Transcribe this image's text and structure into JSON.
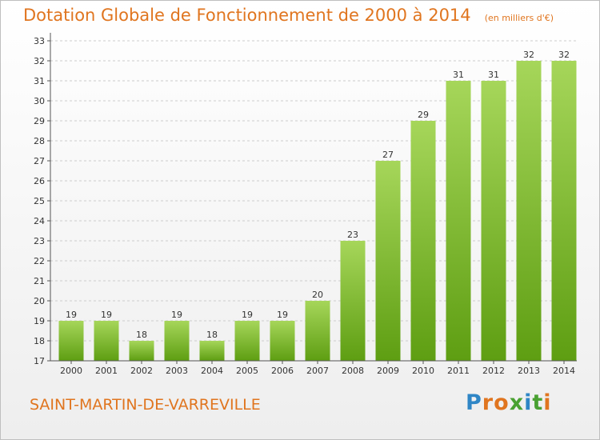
{
  "title": "Dotation Globale de Fonctionnement de 2000 à 2014",
  "subtitle": "(en milliers d'€)",
  "commune": "SAINT-MARTIN-DE-VARREVILLE",
  "logo": {
    "text": "Proxiti",
    "letter_colors": [
      "#2f86c6",
      "#e0751f",
      "#e0751f",
      "#4aa132",
      "#2f86c6",
      "#4aa132",
      "#e0751f"
    ]
  },
  "colors": {
    "title": "#e0751f",
    "bar_top": "#a6d65a",
    "bar_bottom": "#5e9e12",
    "grid": "#cccccc",
    "axis": "#555555"
  },
  "chart_data": {
    "type": "bar",
    "categories": [
      "2000",
      "2001",
      "2002",
      "2003",
      "2004",
      "2005",
      "2006",
      "2007",
      "2008",
      "2009",
      "2010",
      "2011",
      "2012",
      "2013",
      "2014"
    ],
    "values": [
      19,
      19,
      18,
      19,
      18,
      19,
      19,
      20,
      23,
      27,
      29,
      31,
      31,
      32,
      32
    ],
    "title": "Dotation Globale de Fonctionnement de 2000 à 2014",
    "subtitle": "(en milliers d'€)",
    "ylim": [
      17,
      33
    ],
    "yticks": [
      17,
      18,
      19,
      20,
      21,
      22,
      23,
      24,
      25,
      26,
      27,
      28,
      29,
      30,
      31,
      32,
      33
    ],
    "grid": "horizontal, dashed",
    "data_labels": true
  }
}
